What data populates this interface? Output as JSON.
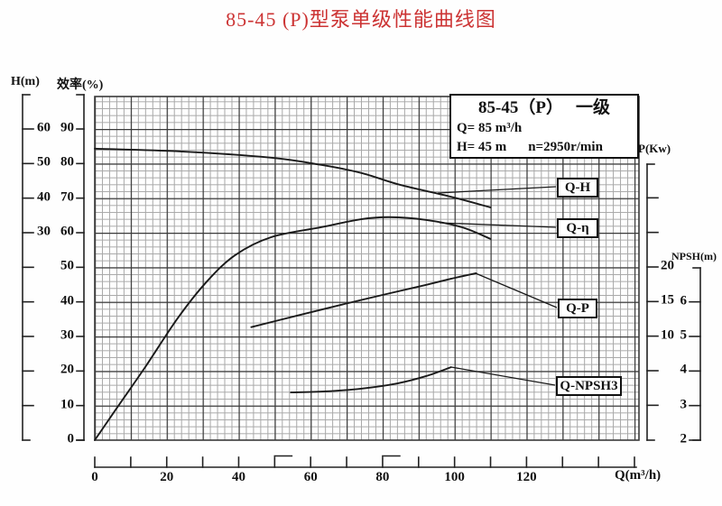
{
  "title": "85-45 (P)型泵单级性能曲线图",
  "colors": {
    "title_red": "#cc3333",
    "curve": "#1a1a1a",
    "grid_minor": "#a8a8a8",
    "grid_major": "#3a3a3a",
    "axis_ink": "#222222"
  },
  "axes": {
    "h": {
      "name": "H(m)",
      "labeled_ticks": [
        60,
        50,
        40,
        30
      ]
    },
    "efficiency": {
      "name": "效率(%)",
      "labeled_ticks": [
        90,
        80,
        70,
        60,
        50,
        40,
        30,
        20,
        10,
        0
      ]
    },
    "p": {
      "name": "P(Kw)",
      "labeled_ticks": [
        20,
        15,
        10
      ]
    },
    "npsh": {
      "name": "NPSH(m)",
      "labeled_ticks": [
        6,
        5,
        4,
        3,
        2
      ]
    },
    "q": {
      "name": "Q(m³/h)",
      "labeled_ticks": [
        0,
        20,
        40,
        60,
        80,
        100,
        120
      ],
      "range_marks": [
        50,
        80
      ]
    }
  },
  "legend": {
    "model": "85-45（P）",
    "stage": "一级",
    "line_q": "Q= 85 m³/h",
    "line_h": "H= 45 m",
    "line_n": "n=2950r/min"
  },
  "curve_labels": {
    "qh": "Q-H",
    "qeta": "Q-η",
    "qp": "Q-P",
    "qnpsh": "Q-NPSH3"
  },
  "chart_data": {
    "type": "line",
    "title": "85-45 (P)型泵单级性能曲线图",
    "xlabel": "Q(m³/h)",
    "x_range": [
      0,
      150
    ],
    "grid": true,
    "axis_ranges": {
      "H_m": [
        30,
        60
      ],
      "efficiency_pct": [
        0,
        90
      ],
      "P_Kw": [
        10,
        20
      ],
      "NPSH_m": [
        2,
        6
      ]
    },
    "rated_point": {
      "Q_m3h": 85,
      "H_m": 45,
      "n_rpm": 2950,
      "stage": "一级"
    },
    "series": [
      {
        "key": "qh",
        "name": "Q-H",
        "axis": "H",
        "ylabel": "H(m)",
        "points": [
          [
            0,
            54.3
          ],
          [
            24,
            53.5
          ],
          [
            49,
            51.7
          ],
          [
            63,
            49.6
          ],
          [
            74,
            47.3
          ],
          [
            85,
            43.8
          ],
          [
            99,
            40.4
          ],
          [
            110,
            37.3
          ]
        ]
      },
      {
        "key": "qeta",
        "name": "Q-η",
        "axis": "efficiency",
        "ylabel": "效率(%)",
        "points": [
          [
            0,
            0
          ],
          [
            6,
            9.1
          ],
          [
            14,
            21.1
          ],
          [
            23,
            35.2
          ],
          [
            31,
            45.7
          ],
          [
            39,
            53.5
          ],
          [
            49,
            58.7
          ],
          [
            63,
            61.6
          ],
          [
            74,
            63.9
          ],
          [
            82,
            64.5
          ],
          [
            92,
            63.7
          ],
          [
            102,
            61.6
          ],
          [
            110,
            58.2
          ]
        ]
      },
      {
        "key": "qp",
        "name": "Q-P",
        "axis": "P",
        "ylabel": "P(Kw)",
        "points": [
          [
            43.5,
            11.3
          ],
          [
            56.5,
            13.0
          ],
          [
            69,
            14.6
          ],
          [
            82,
            16.2
          ],
          [
            92,
            17.4
          ],
          [
            99,
            18.3
          ],
          [
            106,
            19.1
          ]
        ]
      },
      {
        "key": "qnpsh",
        "name": "Q-NPSH3",
        "axis": "NPSH",
        "ylabel": "NPSH(m)",
        "points": [
          [
            54.5,
            3.38
          ],
          [
            64,
            3.41
          ],
          [
            74,
            3.49
          ],
          [
            84,
            3.64
          ],
          [
            92,
            3.85
          ],
          [
            99,
            4.11
          ]
        ]
      }
    ]
  }
}
